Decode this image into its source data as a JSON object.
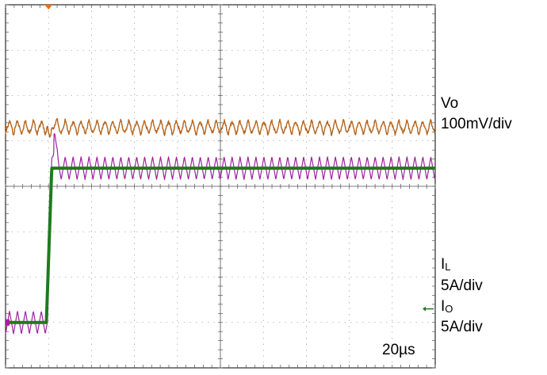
{
  "chart_data": {
    "type": "line",
    "title": "",
    "xlabel": "",
    "ylabel": "",
    "time_scale": "20µs",
    "grid": true,
    "divisions": {
      "x": 10,
      "y": 8
    },
    "xlim": [
      0,
      200
    ],
    "x_unit": "µs",
    "channels": [
      {
        "key": "vo",
        "label": "Vo",
        "scale": "100mV/div",
        "color": "#b5651d",
        "baseline_div": 2.0,
        "ripple_pp_div": 0.3,
        "ripple_period_us": 3.7,
        "events": [
          {
            "t": 20,
            "kind": "load-step-dip",
            "depth_div": 0.3,
            "overshoot_div": 0.2
          }
        ]
      },
      {
        "key": "il",
        "label_main": "I",
        "label_sub": "L",
        "scale": "5A/div",
        "color": "#a020a0",
        "levels_div": [
          {
            "from": 0,
            "to": 19.3,
            "value": 0.0
          },
          {
            "from": 21.5,
            "to": 200,
            "value": 3.4
          }
        ],
        "ripple_pp_div": 0.5,
        "ripple_period_us": 3.7,
        "overshoot": {
          "t": 22.5,
          "peak_div": 4.3
        }
      },
      {
        "key": "io",
        "label_main": "I",
        "label_sub": "O",
        "scale": "5A/div",
        "color": "#1f7a1f",
        "levels_div": [
          {
            "from": 0,
            "to": 19.0,
            "value": 0.0
          },
          {
            "from": 21.5,
            "to": 200,
            "value": 3.4
          }
        ]
      }
    ],
    "trigger_marker": {
      "t": 20,
      "color": "#ff6a13"
    }
  },
  "labels": {
    "vo_name": "Vo",
    "vo_scale": "100mV/div",
    "il_main": "I",
    "il_sub": "L",
    "il_scale": "5A/div",
    "io_main": "I",
    "io_sub": "O",
    "io_scale": "5A/div",
    "timebase": "20µs"
  }
}
